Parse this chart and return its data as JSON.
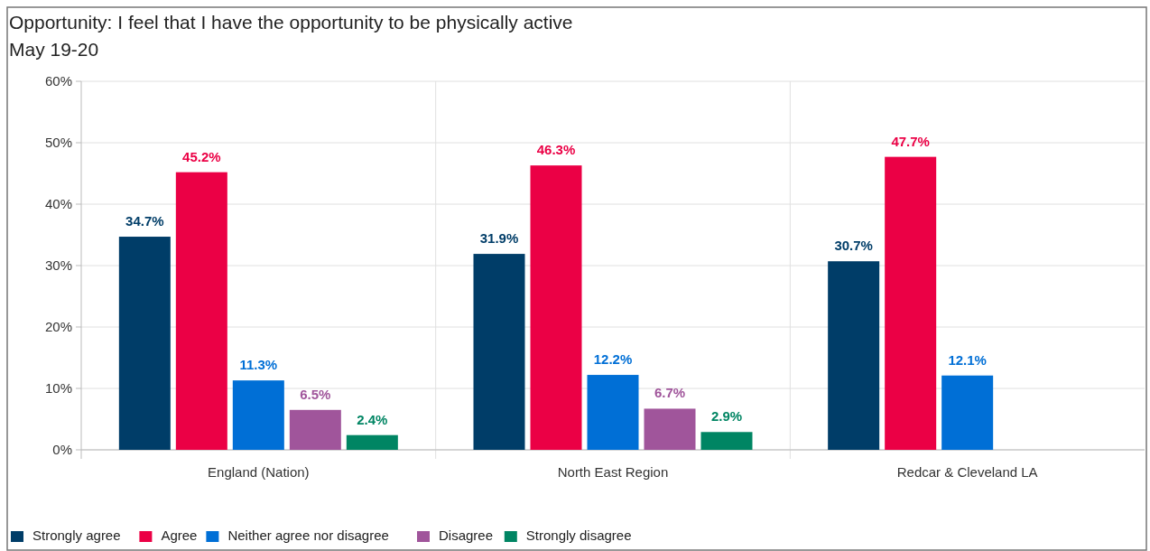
{
  "chart_data": {
    "type": "bar",
    "title": "Opportunity: I feel that I have the opportunity to be physically active",
    "subtitle": "May 19-20",
    "categories": [
      "England (Nation)",
      "North East Region",
      "Redcar & Cleveland LA"
    ],
    "series": [
      {
        "name": "Strongly agree",
        "color": "#003d68",
        "values": [
          34.7,
          31.9,
          30.7
        ],
        "value_labels": [
          "34.7%",
          "31.9%",
          "30.7%"
        ]
      },
      {
        "name": "Agree",
        "color": "#eb0045",
        "values": [
          45.2,
          46.3,
          47.7
        ],
        "value_labels": [
          "45.2%",
          "46.3%",
          "47.7%"
        ]
      },
      {
        "name": "Neither agree nor disagree",
        "color": "#006fd6",
        "values": [
          11.3,
          12.2,
          12.1
        ],
        "value_labels": [
          "11.3%",
          "12.2%",
          "12.1%"
        ]
      },
      {
        "name": "Disagree",
        "color": "#a0559b",
        "values": [
          6.5,
          6.7,
          null
        ],
        "value_labels": [
          "6.5%",
          "6.7%",
          null
        ]
      },
      {
        "name": "Strongly disagree",
        "color": "#008563",
        "values": [
          2.4,
          2.9,
          null
        ],
        "value_labels": [
          "2.4%",
          "2.9%",
          null
        ]
      }
    ],
    "ylim": [
      0,
      60
    ],
    "yticks": [
      {
        "value": 0,
        "label": "0%"
      },
      {
        "value": 10,
        "label": "10%"
      },
      {
        "value": 20,
        "label": "20%"
      },
      {
        "value": 30,
        "label": "30%"
      },
      {
        "value": 40,
        "label": "40%"
      },
      {
        "value": 50,
        "label": "50%"
      },
      {
        "value": 60,
        "label": "60%"
      }
    ],
    "grid": true,
    "legend": "bottom left"
  }
}
